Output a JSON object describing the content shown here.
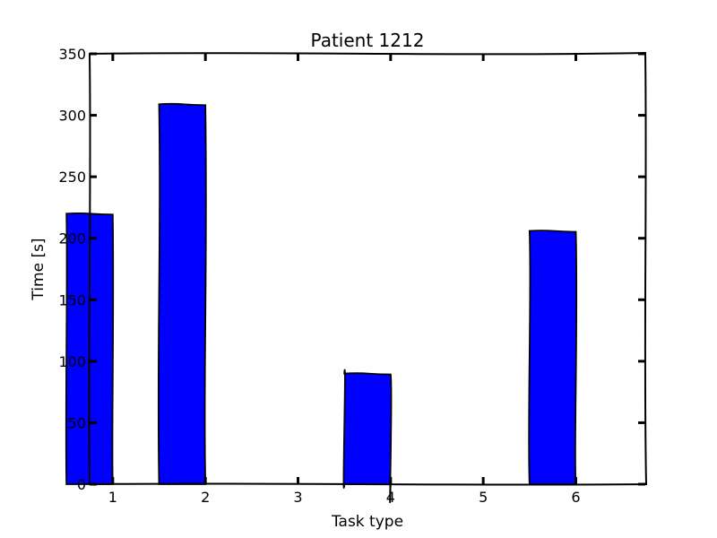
{
  "chart_data": {
    "type": "bar",
    "title": "Patient 1212",
    "xlabel": "Task type",
    "ylabel": "Time [s]",
    "categories": [
      "1",
      "2",
      "3",
      "4",
      "5",
      "6"
    ],
    "values": [
      220,
      309,
      0,
      90,
      0,
      206
    ],
    "ylim": [
      0,
      350
    ],
    "y_ticks": [
      "0",
      "50",
      "100",
      "150",
      "200",
      "250",
      "300",
      "350"
    ],
    "bar_color": "#0000ff",
    "grid": false,
    "legend": "none"
  }
}
